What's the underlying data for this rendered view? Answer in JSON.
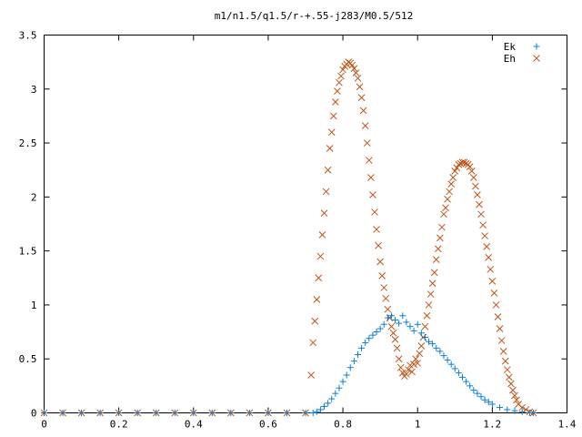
{
  "chart_data": {
    "type": "scatter",
    "title": "m1/n1.5/q1.5/r-+.55-j283/M0.5/512",
    "xlabel": "",
    "ylabel": "",
    "xlim": [
      0,
      1.4
    ],
    "ylim": [
      0,
      3.5
    ],
    "x_ticks": [
      "0",
      "0.2",
      "0.4",
      "0.6",
      "0.8",
      "1",
      "1.2",
      "1.4"
    ],
    "y_ticks": [
      "0",
      "0.5",
      "1",
      "1.5",
      "2",
      "2.5",
      "3",
      "3.5"
    ],
    "grid": false,
    "legend_position": "top-right",
    "series": [
      {
        "name": "Ek",
        "marker": "plus",
        "color": "#0a7fd8",
        "points": [
          [
            0.0,
            0.0
          ],
          [
            0.05,
            0.0
          ],
          [
            0.1,
            0.0
          ],
          [
            0.15,
            0.0
          ],
          [
            0.2,
            0.0
          ],
          [
            0.25,
            0.0
          ],
          [
            0.3,
            0.0
          ],
          [
            0.35,
            0.0
          ],
          [
            0.4,
            0.0
          ],
          [
            0.45,
            0.0
          ],
          [
            0.5,
            0.0
          ],
          [
            0.55,
            0.0
          ],
          [
            0.6,
            0.0
          ],
          [
            0.65,
            0.0
          ],
          [
            0.7,
            0.0
          ],
          [
            0.72,
            0.0
          ],
          [
            0.73,
            0.01
          ],
          [
            0.74,
            0.03
          ],
          [
            0.75,
            0.06
          ],
          [
            0.76,
            0.09
          ],
          [
            0.77,
            0.13
          ],
          [
            0.78,
            0.18
          ],
          [
            0.79,
            0.23
          ],
          [
            0.8,
            0.29
          ],
          [
            0.81,
            0.35
          ],
          [
            0.82,
            0.42
          ],
          [
            0.83,
            0.48
          ],
          [
            0.84,
            0.54
          ],
          [
            0.85,
            0.6
          ],
          [
            0.86,
            0.65
          ],
          [
            0.87,
            0.69
          ],
          [
            0.88,
            0.72
          ],
          [
            0.89,
            0.75
          ],
          [
            0.9,
            0.78
          ],
          [
            0.91,
            0.82
          ],
          [
            0.92,
            0.88
          ],
          [
            0.93,
            0.9
          ],
          [
            0.94,
            0.86
          ],
          [
            0.95,
            0.83
          ],
          [
            0.96,
            0.9
          ],
          [
            0.97,
            0.84
          ],
          [
            0.98,
            0.8
          ],
          [
            0.99,
            0.76
          ],
          [
            1.0,
            0.82
          ],
          [
            1.01,
            0.74
          ],
          [
            1.02,
            0.7
          ],
          [
            1.03,
            0.66
          ],
          [
            1.04,
            0.64
          ],
          [
            1.05,
            0.6
          ],
          [
            1.06,
            0.57
          ],
          [
            1.07,
            0.53
          ],
          [
            1.08,
            0.49
          ],
          [
            1.09,
            0.45
          ],
          [
            1.1,
            0.41
          ],
          [
            1.11,
            0.37
          ],
          [
            1.12,
            0.33
          ],
          [
            1.13,
            0.29
          ],
          [
            1.14,
            0.25
          ],
          [
            1.15,
            0.21
          ],
          [
            1.16,
            0.18
          ],
          [
            1.17,
            0.15
          ],
          [
            1.18,
            0.12
          ],
          [
            1.19,
            0.1
          ],
          [
            1.2,
            0.08
          ],
          [
            1.22,
            0.05
          ],
          [
            1.24,
            0.03
          ],
          [
            1.26,
            0.02
          ],
          [
            1.28,
            0.01
          ],
          [
            1.3,
            0.0
          ],
          [
            1.31,
            0.0
          ]
        ]
      },
      {
        "name": "Eh",
        "marker": "cross",
        "color": "#c0561a",
        "points": [
          [
            0.0,
            0.0
          ],
          [
            0.05,
            0.0
          ],
          [
            0.1,
            0.0
          ],
          [
            0.15,
            0.0
          ],
          [
            0.2,
            0.0
          ],
          [
            0.25,
            0.0
          ],
          [
            0.3,
            0.0
          ],
          [
            0.35,
            0.0
          ],
          [
            0.4,
            0.0
          ],
          [
            0.45,
            0.0
          ],
          [
            0.5,
            0.0
          ],
          [
            0.55,
            0.0
          ],
          [
            0.6,
            0.0
          ],
          [
            0.65,
            0.0
          ],
          [
            0.7,
            0.0
          ],
          [
            0.715,
            0.35
          ],
          [
            0.72,
            0.65
          ],
          [
            0.725,
            0.85
          ],
          [
            0.73,
            1.05
          ],
          [
            0.735,
            1.25
          ],
          [
            0.74,
            1.45
          ],
          [
            0.745,
            1.65
          ],
          [
            0.75,
            1.85
          ],
          [
            0.755,
            2.05
          ],
          [
            0.76,
            2.25
          ],
          [
            0.765,
            2.45
          ],
          [
            0.77,
            2.6
          ],
          [
            0.775,
            2.75
          ],
          [
            0.78,
            2.88
          ],
          [
            0.785,
            2.98
          ],
          [
            0.79,
            3.06
          ],
          [
            0.795,
            3.12
          ],
          [
            0.8,
            3.18
          ],
          [
            0.805,
            3.21
          ],
          [
            0.81,
            3.23
          ],
          [
            0.815,
            3.25
          ],
          [
            0.82,
            3.24
          ],
          [
            0.825,
            3.22
          ],
          [
            0.83,
            3.19
          ],
          [
            0.835,
            3.15
          ],
          [
            0.84,
            3.1
          ],
          [
            0.845,
            3.02
          ],
          [
            0.85,
            2.92
          ],
          [
            0.855,
            2.8
          ],
          [
            0.86,
            2.66
          ],
          [
            0.865,
            2.5
          ],
          [
            0.87,
            2.34
          ],
          [
            0.875,
            2.18
          ],
          [
            0.88,
            2.02
          ],
          [
            0.885,
            1.86
          ],
          [
            0.89,
            1.7
          ],
          [
            0.895,
            1.55
          ],
          [
            0.9,
            1.4
          ],
          [
            0.905,
            1.27
          ],
          [
            0.91,
            1.16
          ],
          [
            0.915,
            1.06
          ],
          [
            0.92,
            0.96
          ],
          [
            0.925,
            0.88
          ],
          [
            0.93,
            0.8
          ],
          [
            0.935,
            0.74
          ],
          [
            0.94,
            0.68
          ],
          [
            0.945,
            0.6
          ],
          [
            0.95,
            0.5
          ],
          [
            0.955,
            0.42
          ],
          [
            0.96,
            0.37
          ],
          [
            0.965,
            0.34
          ],
          [
            0.97,
            0.36
          ],
          [
            0.975,
            0.4
          ],
          [
            0.98,
            0.44
          ],
          [
            0.985,
            0.38
          ],
          [
            0.99,
            0.45
          ],
          [
            0.995,
            0.5
          ],
          [
            1.0,
            0.46
          ],
          [
            1.005,
            0.55
          ],
          [
            1.01,
            0.62
          ],
          [
            1.015,
            0.7
          ],
          [
            1.02,
            0.8
          ],
          [
            1.025,
            0.9
          ],
          [
            1.03,
            1.0
          ],
          [
            1.035,
            1.1
          ],
          [
            1.04,
            1.2
          ],
          [
            1.045,
            1.3
          ],
          [
            1.05,
            1.42
          ],
          [
            1.055,
            1.52
          ],
          [
            1.06,
            1.62
          ],
          [
            1.065,
            1.72
          ],
          [
            1.07,
            1.84
          ],
          [
            1.075,
            1.9
          ],
          [
            1.08,
            1.98
          ],
          [
            1.085,
            2.05
          ],
          [
            1.09,
            2.12
          ],
          [
            1.095,
            2.18
          ],
          [
            1.1,
            2.24
          ],
          [
            1.105,
            2.27
          ],
          [
            1.11,
            2.3
          ],
          [
            1.115,
            2.31
          ],
          [
            1.12,
            2.32
          ],
          [
            1.125,
            2.32
          ],
          [
            1.13,
            2.31
          ],
          [
            1.135,
            2.3
          ],
          [
            1.14,
            2.28
          ],
          [
            1.145,
            2.24
          ],
          [
            1.15,
            2.18
          ],
          [
            1.155,
            2.1
          ],
          [
            1.16,
            2.02
          ],
          [
            1.165,
            1.93
          ],
          [
            1.17,
            1.84
          ],
          [
            1.175,
            1.74
          ],
          [
            1.18,
            1.64
          ],
          [
            1.185,
            1.54
          ],
          [
            1.19,
            1.44
          ],
          [
            1.195,
            1.33
          ],
          [
            1.2,
            1.22
          ],
          [
            1.205,
            1.11
          ],
          [
            1.21,
            1.0
          ],
          [
            1.215,
            0.89
          ],
          [
            1.22,
            0.78
          ],
          [
            1.225,
            0.67
          ],
          [
            1.23,
            0.57
          ],
          [
            1.235,
            0.48
          ],
          [
            1.24,
            0.4
          ],
          [
            1.245,
            0.33
          ],
          [
            1.25,
            0.27
          ],
          [
            1.255,
            0.21
          ],
          [
            1.26,
            0.16
          ],
          [
            1.265,
            0.12
          ],
          [
            1.27,
            0.08
          ],
          [
            1.28,
            0.05
          ],
          [
            1.29,
            0.03
          ],
          [
            1.3,
            0.01
          ],
          [
            1.31,
            0.0
          ]
        ]
      }
    ]
  }
}
